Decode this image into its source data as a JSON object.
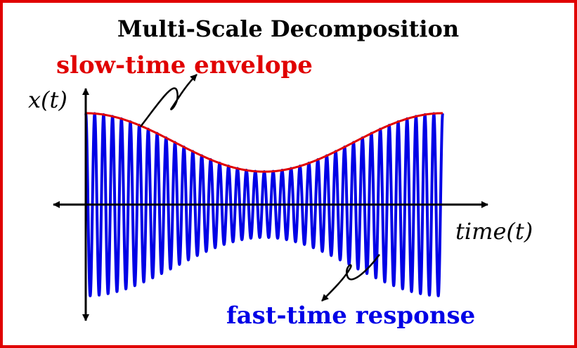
{
  "title": "Multi-Scale Decomposition",
  "labels": {
    "envelope": "slow-time envelope",
    "response": "fast-time response",
    "y_axis": "x(t)",
    "x_axis": "time(t)"
  },
  "colors": {
    "frame": "#e00000",
    "envelope": "#e00000",
    "response": "#0000e6",
    "text": "#000000"
  },
  "signal": {
    "cycles": 40,
    "envelope_max": 1.0,
    "envelope_min": 0.36
  }
}
